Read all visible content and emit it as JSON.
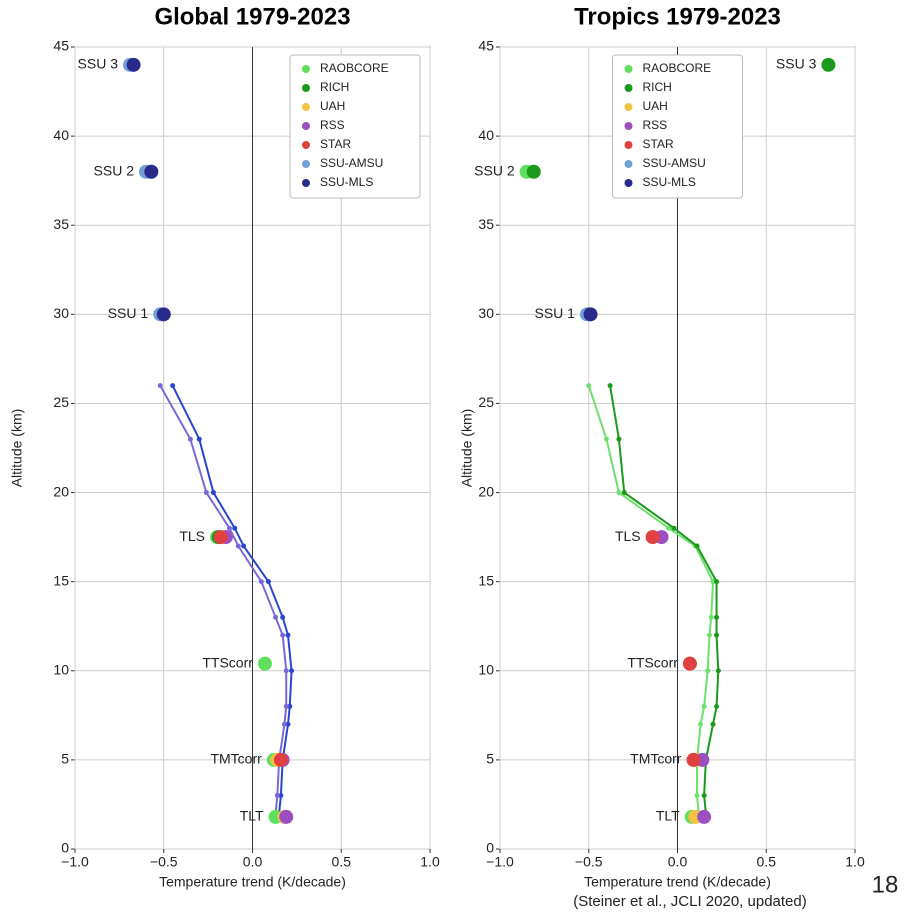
{
  "slide": {
    "citation": "(Steiner et al., JCLI 2020, updated)",
    "page_number": "18"
  },
  "chart_data": [
    {
      "type": "profile",
      "title": "Global 1979-2023",
      "xlabel": "Temperature trend (K/decade)",
      "ylabel": "Altitude (km)",
      "xlim": [
        -1,
        1
      ],
      "ylim": [
        0,
        45
      ],
      "xticks": [
        {
          "value": -1,
          "label": "−1.0"
        },
        {
          "value": -0.5,
          "label": "−0.5"
        },
        {
          "value": 0,
          "label": "0.0"
        },
        0.5,
        {
          "value": 1,
          "label": "1.0"
        }
      ],
      "yticks": [
        0,
        5,
        10,
        15,
        20,
        25,
        30,
        35,
        40,
        45
      ],
      "grid": true,
      "legend": "upper right",
      "profiles": {
        "altitudes": [
          2,
          3,
          5,
          7,
          8,
          10,
          12,
          13,
          15,
          17,
          18,
          20,
          23,
          26
        ],
        "series": [
          {
            "color": "#2a45d0",
            "values": [
              0.15,
              0.16,
              0.17,
              0.2,
              0.21,
              0.22,
              0.2,
              0.17,
              0.09,
              -0.05,
              -0.1,
              -0.22,
              -0.3,
              -0.45
            ]
          },
          {
            "color": "#7a68d8",
            "values": [
              0.13,
              0.14,
              0.15,
              0.18,
              0.19,
              0.19,
              0.17,
              0.13,
              0.05,
              -0.08,
              -0.13,
              -0.26,
              -0.35,
              -0.52
            ]
          }
        ]
      },
      "layers": [
        {
          "label": "SSU 3",
          "y": 44
        },
        {
          "label": "SSU 2",
          "y": 38
        },
        {
          "label": "SSU 1",
          "y": 30
        },
        {
          "label": "TLS",
          "y": 17.5
        },
        {
          "label": "TTScorr",
          "y": 10.4
        },
        {
          "label": "TMTcorr",
          "y": 5
        },
        {
          "label": "TLT",
          "y": 1.8
        }
      ],
      "series": [
        {
          "name": "RAOBCORE",
          "color": "#5ee05e",
          "values": [
            null,
            null,
            null,
            -0.2,
            0.07,
            0.12,
            0.13
          ]
        },
        {
          "name": "RICH",
          "color": "#1a9a1a",
          "values": [
            null,
            null,
            null,
            -0.19,
            null,
            null,
            null
          ]
        },
        {
          "name": "UAH",
          "color": "#f5c242",
          "values": [
            null,
            null,
            null,
            -0.17,
            null,
            0.14,
            0.18
          ]
        },
        {
          "name": "RSS",
          "color": "#9b4fc0",
          "values": [
            null,
            null,
            null,
            -0.15,
            null,
            0.17,
            0.19
          ]
        },
        {
          "name": "STAR",
          "color": "#e04040",
          "values": [
            null,
            null,
            null,
            -0.18,
            null,
            0.16,
            null
          ]
        },
        {
          "name": "SSU-AMSU",
          "color": "#6fa0d8",
          "values": [
            -0.69,
            -0.6,
            -0.52,
            null,
            null,
            null,
            null
          ]
        },
        {
          "name": "SSU-MLS",
          "color": "#2a2a8a",
          "values": [
            -0.67,
            -0.57,
            -0.5,
            null,
            null,
            null,
            null
          ]
        }
      ]
    },
    {
      "type": "profile",
      "title": "Tropics 1979-2023",
      "xlabel": "Temperature trend (K/decade)",
      "ylabel": "Altitude (km)",
      "xlim": [
        -1,
        1
      ],
      "ylim": [
        0,
        45
      ],
      "xticks": [
        {
          "value": -1,
          "label": "−1.0"
        },
        {
          "value": -0.5,
          "label": "−0.5"
        },
        {
          "value": 0,
          "label": "0.0"
        },
        0.5,
        {
          "value": 1,
          "label": "1.0"
        }
      ],
      "yticks": [
        0,
        5,
        10,
        15,
        20,
        25,
        30,
        35,
        40,
        45
      ],
      "grid": true,
      "legend": "upper center",
      "profiles": {
        "altitudes": [
          2,
          3,
          5,
          7,
          8,
          10,
          12,
          13,
          15,
          17,
          18,
          20,
          23,
          26
        ],
        "series": [
          {
            "color": "#6ee06e",
            "values": [
              0.12,
              0.11,
              0.11,
              0.13,
              0.15,
              0.17,
              0.18,
              0.19,
              0.2,
              0.1,
              -0.05,
              -0.33,
              -0.4,
              -0.5
            ]
          },
          {
            "color": "#1a9a1a",
            "values": [
              0.16,
              0.15,
              0.16,
              0.2,
              0.22,
              0.23,
              0.22,
              0.22,
              0.22,
              0.11,
              -0.02,
              -0.3,
              -0.33,
              -0.38
            ]
          }
        ]
      },
      "layers": [
        {
          "label": "SSU 3",
          "y": 44
        },
        {
          "label": "SSU 2",
          "y": 38
        },
        {
          "label": "SSU 1",
          "y": 30
        },
        {
          "label": "TLS",
          "y": 17.5
        },
        {
          "label": "TTScorr",
          "y": 10.4
        },
        {
          "label": "TMTcorr",
          "y": 5
        },
        {
          "label": "TLT",
          "y": 1.8
        }
      ],
      "series": [
        {
          "name": "RAOBCORE",
          "color": "#5ee05e",
          "values": [
            null,
            -0.85,
            null,
            null,
            null,
            null,
            0.08
          ]
        },
        {
          "name": "RICH",
          "color": "#1a9a1a",
          "values": [
            0.85,
            -0.81,
            null,
            null,
            null,
            null,
            null
          ]
        },
        {
          "name": "UAH",
          "color": "#f5c242",
          "values": [
            null,
            null,
            null,
            -0.14,
            0.07,
            0.1,
            0.1
          ]
        },
        {
          "name": "RSS",
          "color": "#9b4fc0",
          "values": [
            null,
            null,
            null,
            -0.09,
            null,
            0.14,
            0.15
          ]
        },
        {
          "name": "STAR",
          "color": "#e04040",
          "values": [
            null,
            null,
            null,
            -0.14,
            0.07,
            0.09,
            null
          ]
        },
        {
          "name": "SSU-AMSU",
          "color": "#6fa0d8",
          "values": [
            null,
            null,
            -0.51,
            null,
            null,
            null,
            null
          ]
        },
        {
          "name": "SSU-MLS",
          "color": "#2a2a8a",
          "values": [
            null,
            null,
            -0.49,
            null,
            null,
            null,
            null
          ]
        }
      ]
    }
  ]
}
